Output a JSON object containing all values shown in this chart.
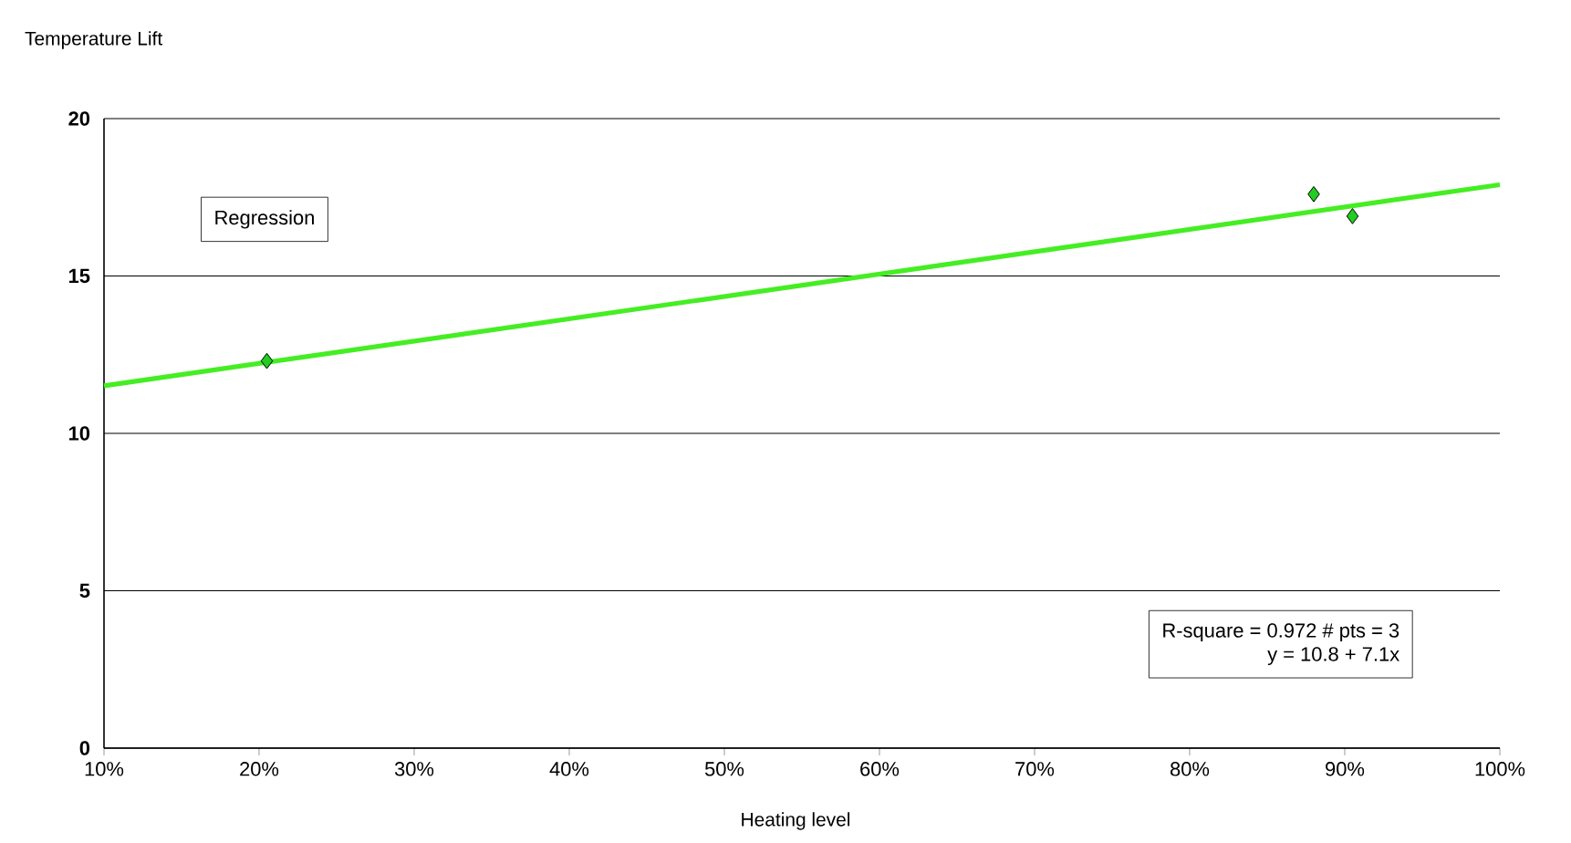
{
  "chart_data": {
    "type": "scatter",
    "xlabel": "Heating level",
    "ylabel": "Temperature Lift",
    "xlim": [
      0.1,
      1.0
    ],
    "ylim": [
      0,
      20
    ],
    "xticks": [
      {
        "value": 0.1,
        "label": "10%"
      },
      {
        "value": 0.2,
        "label": "20%"
      },
      {
        "value": 0.3,
        "label": "30%"
      },
      {
        "value": 0.4,
        "label": "40%"
      },
      {
        "value": 0.5,
        "label": "50%"
      },
      {
        "value": 0.6,
        "label": "60%"
      },
      {
        "value": 0.7,
        "label": "70%"
      },
      {
        "value": 0.8,
        "label": "80%"
      },
      {
        "value": 0.9,
        "label": "90%"
      },
      {
        "value": 1.0,
        "label": "100%"
      }
    ],
    "yticks": [
      0,
      5,
      10,
      15,
      20
    ],
    "grid": "y",
    "annotations": [
      "Regression",
      "R-square = 0.972   # pts = 3",
      "y = 10.8 + 7.1x"
    ],
    "series": [
      {
        "type": "line",
        "color": "#44ee22",
        "x": [
          0.1,
          1.0
        ],
        "values": [
          11.51,
          17.9
        ]
      },
      {
        "marker": "diamond",
        "color": "#22cc22",
        "x": [
          0.205,
          0.88,
          0.905
        ],
        "values": [
          12.3,
          17.6,
          16.9
        ]
      }
    ]
  }
}
